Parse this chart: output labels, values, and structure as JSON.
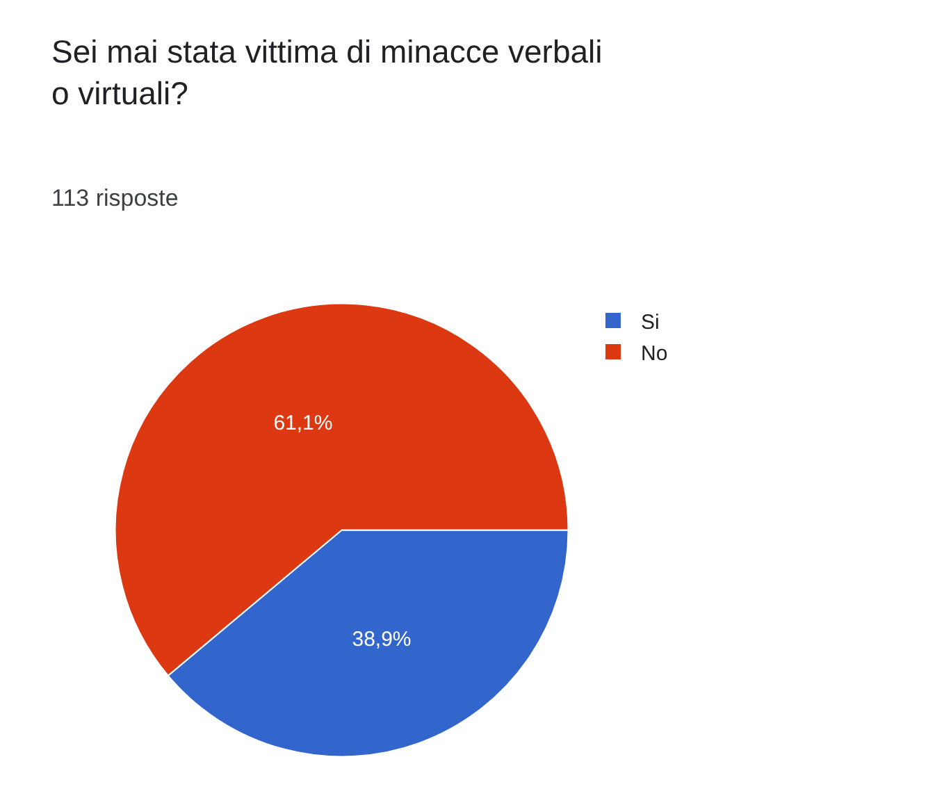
{
  "chart_data": {
    "type": "pie",
    "title": "Sei mai stata vittima di minacce verbali o virtuali?",
    "subtitle": "113 risposte",
    "categories": [
      "Si",
      "No"
    ],
    "values": [
      38.9,
      61.1
    ],
    "value_labels": [
      "38,9%",
      "61,1%"
    ],
    "colors": [
      "#3366cc",
      "#dc3912"
    ],
    "legend": "top right"
  }
}
